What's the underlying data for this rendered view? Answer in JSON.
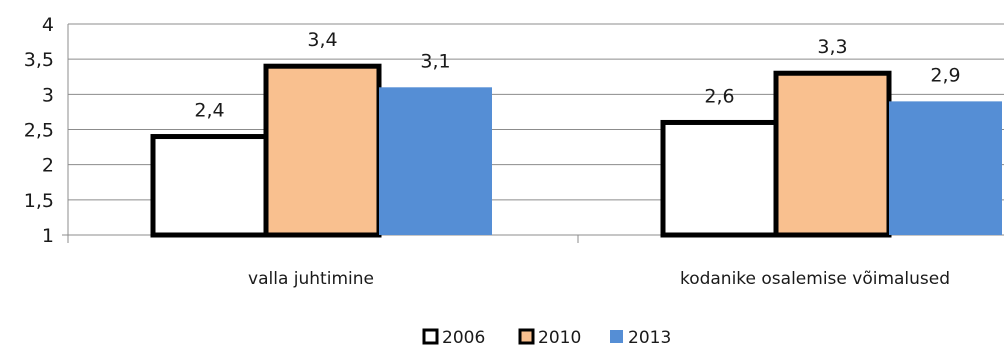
{
  "chart_data": {
    "type": "bar",
    "title": "",
    "xlabel": "",
    "ylabel": "",
    "ylim": [
      1,
      4
    ],
    "yticks": [
      1,
      1.5,
      2,
      2.5,
      3,
      3.5,
      4
    ],
    "ytick_labels": [
      "1",
      "1,5",
      "2",
      "2,5",
      "3",
      "3,5",
      "4"
    ],
    "grid": true,
    "legend_position": "bottom",
    "categories": [
      "valla juhtimine",
      "kodanike osalemise võimalused"
    ],
    "series": [
      {
        "name": "2006",
        "values": [
          2.4,
          2.6
        ],
        "labels": [
          "2,4",
          "2,6"
        ],
        "fill": "#ffffff",
        "stroke": "#000000"
      },
      {
        "name": "2010",
        "values": [
          3.4,
          3.3
        ],
        "labels": [
          "3,4",
          "3,3"
        ],
        "fill": "#f9c08f",
        "stroke": "#000000"
      },
      {
        "name": "2013",
        "values": [
          3.1,
          2.9
        ],
        "labels": [
          "3,1",
          "2,9"
        ],
        "fill": "#558ed5",
        "stroke": "none"
      }
    ]
  }
}
